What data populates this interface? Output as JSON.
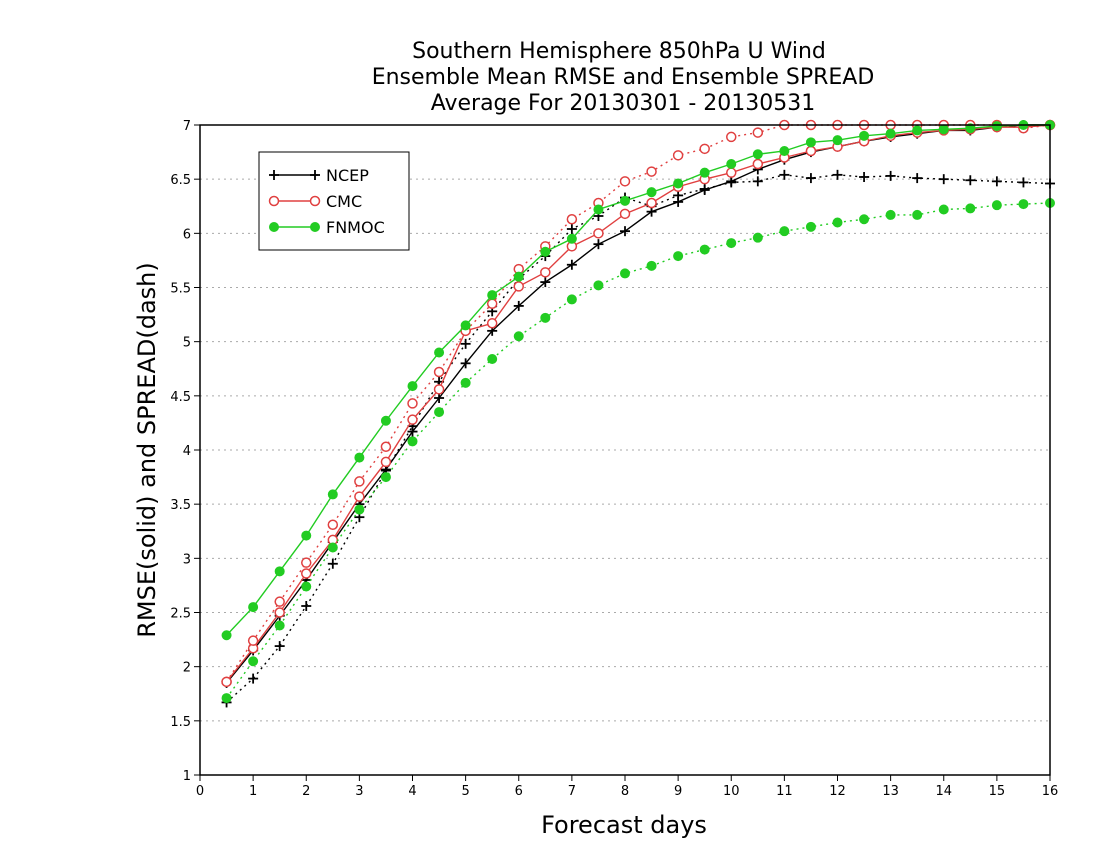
{
  "chart_data": {
    "type": "line",
    "title": [
      "Southern Hemisphere 850hPa U Wind",
      "Ensemble Mean RMSE and Ensemble SPREAD",
      "Average For 20130301 - 20130531"
    ],
    "xlabel": "Forecast days",
    "ylabel": "RMSE(solid) and SPREAD(dash)",
    "xlim": [
      0,
      16
    ],
    "ylim": [
      1,
      7
    ],
    "x_ticks": [
      "0",
      "1",
      "2",
      "3",
      "4",
      "5",
      "6",
      "7",
      "8",
      "9",
      "10",
      "11",
      "12",
      "13",
      "14",
      "15",
      "16"
    ],
    "y_ticks": [
      "1",
      "1.5",
      "2",
      "2.5",
      "3",
      "3.5",
      "4",
      "4.5",
      "5",
      "5.5",
      "6",
      "6.5",
      "7"
    ],
    "grid": "horizontal dotted",
    "legend_position": "top-left",
    "x": [
      0.5,
      1,
      1.5,
      2,
      2.5,
      3,
      3.5,
      4,
      4.5,
      5,
      5.5,
      6,
      6.5,
      7,
      7.5,
      8,
      8.5,
      9,
      9.5,
      10,
      10.5,
      11,
      11.5,
      12,
      12.5,
      13,
      13.5,
      14,
      14.5,
      15,
      15.5,
      16
    ],
    "series": [
      {
        "name": "NCEP",
        "metric": "RMSE",
        "style": "solid",
        "marker": "plus",
        "color": "#000000",
        "values": [
          1.85,
          2.15,
          2.47,
          2.8,
          3.15,
          3.5,
          3.82,
          4.17,
          4.48,
          4.8,
          5.1,
          5.33,
          5.55,
          5.71,
          5.9,
          6.02,
          6.2,
          6.29,
          6.4,
          6.48,
          6.59,
          6.68,
          6.75,
          6.8,
          6.85,
          6.89,
          6.92,
          6.95,
          6.95,
          6.98,
          7.0,
          7.0
        ]
      },
      {
        "name": "NCEP",
        "metric": "SPREAD",
        "style": "dash",
        "marker": "plus",
        "color": "#000000",
        "values": [
          1.67,
          1.89,
          2.19,
          2.56,
          2.95,
          3.38,
          3.81,
          4.22,
          4.63,
          4.98,
          5.28,
          5.58,
          5.79,
          6.04,
          6.16,
          6.33,
          6.25,
          6.35,
          6.41,
          6.47,
          6.48,
          6.54,
          6.51,
          6.54,
          6.52,
          6.53,
          6.51,
          6.5,
          6.49,
          6.48,
          6.47,
          6.46
        ]
      },
      {
        "name": "CMC",
        "metric": "RMSE",
        "style": "solid",
        "marker": "open-circle",
        "color": "#e04040",
        "values": [
          1.86,
          2.17,
          2.5,
          2.86,
          3.17,
          3.57,
          3.89,
          4.28,
          4.56,
          5.1,
          5.17,
          5.51,
          5.64,
          5.88,
          6.0,
          6.18,
          6.28,
          6.43,
          6.5,
          6.56,
          6.64,
          6.7,
          6.76,
          6.8,
          6.85,
          6.9,
          6.93,
          6.95,
          6.96,
          6.98,
          6.98,
          7.0
        ]
      },
      {
        "name": "CMC",
        "metric": "SPREAD",
        "style": "dash",
        "marker": "open-circle",
        "color": "#e04040",
        "values": [
          1.86,
          2.24,
          2.6,
          2.96,
          3.31,
          3.71,
          4.03,
          4.43,
          4.72,
          5.1,
          5.35,
          5.67,
          5.88,
          6.13,
          6.28,
          6.48,
          6.57,
          6.72,
          6.78,
          6.89,
          6.93,
          7.0,
          7.0,
          7.0,
          7.0,
          7.0,
          7.0,
          7.0,
          7.0,
          7.0,
          6.97,
          7.0
        ]
      },
      {
        "name": "FNMOC",
        "metric": "RMSE",
        "style": "solid",
        "marker": "filled-circle",
        "color": "#22cc22",
        "values": [
          2.29,
          2.55,
          2.88,
          3.21,
          3.59,
          3.93,
          4.27,
          4.59,
          4.9,
          5.15,
          5.43,
          5.6,
          5.83,
          5.95,
          6.22,
          6.3,
          6.38,
          6.46,
          6.56,
          6.64,
          6.73,
          6.76,
          6.84,
          6.86,
          6.9,
          6.92,
          6.95,
          6.96,
          6.97,
          6.99,
          7.0,
          7.0
        ]
      },
      {
        "name": "FNMOC",
        "metric": "SPREAD",
        "style": "dash",
        "marker": "filled-circle",
        "color": "#22cc22",
        "values": [
          1.71,
          2.05,
          2.38,
          2.74,
          3.1,
          3.45,
          3.75,
          4.08,
          4.35,
          4.62,
          4.84,
          5.05,
          5.22,
          5.39,
          5.52,
          5.63,
          5.7,
          5.79,
          5.85,
          5.91,
          5.96,
          6.02,
          6.06,
          6.1,
          6.13,
          6.17,
          6.17,
          6.22,
          6.23,
          6.26,
          6.27,
          6.28
        ]
      }
    ],
    "legend": [
      {
        "label": "NCEP",
        "marker": "plus",
        "color": "#000000"
      },
      {
        "label": "CMC",
        "marker": "open-circle",
        "color": "#e04040"
      },
      {
        "label": "FNMOC",
        "marker": "filled-circle",
        "color": "#22cc22"
      }
    ]
  }
}
